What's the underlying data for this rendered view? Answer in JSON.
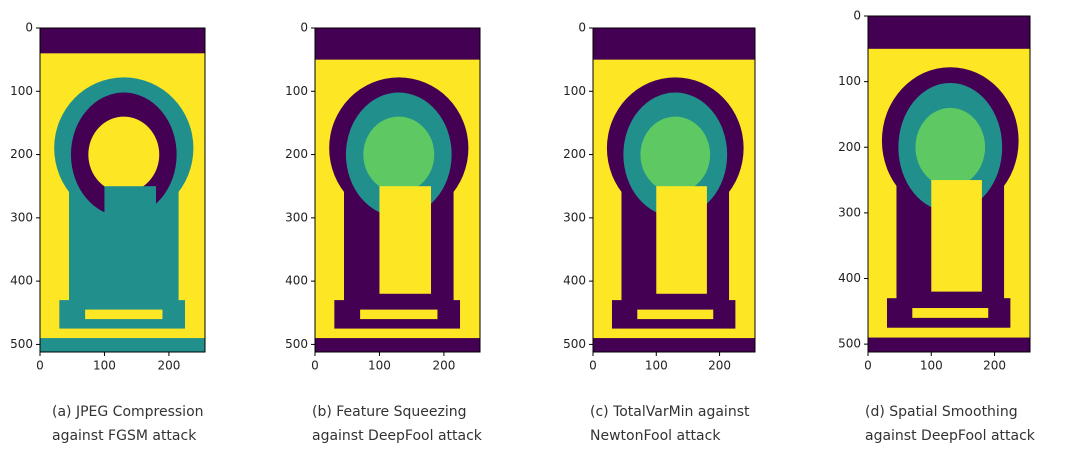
{
  "panels": [
    {
      "yticks": [
        0,
        100,
        200,
        300,
        400,
        500
      ],
      "xticks": [
        0,
        100,
        200
      ],
      "xlim": [
        0,
        256
      ],
      "ylim": [
        512,
        0
      ],
      "caption": [
        "(a) JPEG Compression",
        "against FGSM attack"
      ]
    },
    {
      "yticks": [
        0,
        100,
        200,
        300,
        400,
        500
      ],
      "xticks": [
        0,
        100,
        200
      ],
      "xlim": [
        0,
        256
      ],
      "ylim": [
        512,
        0
      ],
      "caption": [
        "(b) Feature Squeezing",
        "against DeepFool attack"
      ]
    },
    {
      "yticks": [
        0,
        100,
        200,
        300,
        400,
        500
      ],
      "xticks": [
        0,
        100,
        200
      ],
      "xlim": [
        0,
        256
      ],
      "ylim": [
        512,
        0
      ],
      "caption": [
        "(c) TotalVarMin against",
        "NewtonFool attack"
      ]
    },
    {
      "yticks": [
        0,
        100,
        200,
        300,
        400,
        500
      ],
      "xticks": [
        0,
        100,
        200
      ],
      "xlim": [
        0,
        256
      ],
      "ylim": [
        512,
        0
      ],
      "caption": [
        "(d) Spatial Smoothing",
        "against DeepFool attack"
      ]
    }
  ]
}
